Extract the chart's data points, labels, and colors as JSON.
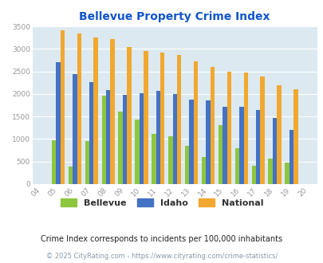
{
  "title": "Bellevue Property Crime Index",
  "years": [
    "04",
    "05",
    "06",
    "07",
    "08",
    "09",
    "10",
    "11",
    "12",
    "13",
    "14",
    "15",
    "16",
    "17",
    "18",
    "19",
    "20"
  ],
  "bellevue": [
    0,
    980,
    390,
    960,
    1970,
    1600,
    1430,
    1120,
    1060,
    840,
    600,
    1310,
    800,
    410,
    560,
    480,
    0
  ],
  "idaho": [
    0,
    2700,
    2440,
    2260,
    2090,
    1980,
    2010,
    2070,
    1990,
    1870,
    1850,
    1720,
    1720,
    1640,
    1470,
    1210,
    0
  ],
  "national": [
    0,
    3420,
    3340,
    3260,
    3210,
    3040,
    2960,
    2910,
    2860,
    2730,
    2600,
    2500,
    2480,
    2390,
    2200,
    2110,
    0
  ],
  "bellevue_color": "#8dc63f",
  "idaho_color": "#4472c4",
  "national_color": "#f0a830",
  "bg_color": "#dce9f0",
  "title_color": "#1155cc",
  "subtitle": "Crime Index corresponds to incidents per 100,000 inhabitants",
  "footnote": "© 2025 CityRating.com - https://www.cityrating.com/crime-statistics/",
  "ylim": [
    0,
    3500
  ],
  "bar_width": 0.26
}
